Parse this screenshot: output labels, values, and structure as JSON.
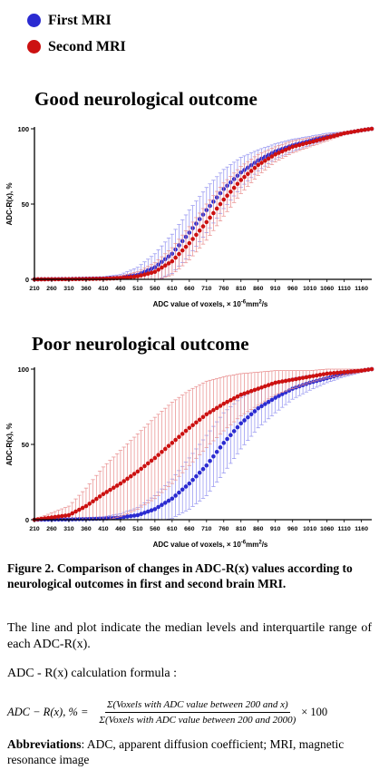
{
  "legend": [
    {
      "label": "First MRI",
      "color": "#2b2bd1"
    },
    {
      "label": "Second MRI",
      "color": "#cc1111"
    }
  ],
  "colors": {
    "first_line": "#2b2bd1",
    "first_error": "#8f8ff0",
    "second_line": "#cc1111",
    "second_error": "#e88a8a"
  },
  "chart_data": [
    {
      "type": "line",
      "title": "Good neurological outcome",
      "ylabel": "ADC-R(x), %",
      "xlabel": "ADC value of voxels, × 10",
      "xlabel_exp": "-6",
      "xlabel_unit": "mm",
      "xlabel_unit_exp": "2",
      "xlabel_tail": "/s",
      "xlim": [
        210,
        1190
      ],
      "ylim": [
        0,
        100
      ],
      "x_ticks": [
        "210",
        "260",
        "310",
        "360",
        "410",
        "460",
        "510",
        "560",
        "610",
        "660",
        "710",
        "760",
        "810",
        "860",
        "910",
        "960",
        "1010",
        "1060",
        "1110",
        "1160"
      ],
      "y_ticks": [
        "0",
        "50",
        "100"
      ],
      "series": [
        {
          "name": "First MRI",
          "x": [
            210,
            310,
            410,
            460,
            510,
            560,
            610,
            660,
            710,
            760,
            810,
            860,
            910,
            960,
            1010,
            1060,
            1110,
            1160,
            1190
          ],
          "y": [
            0,
            0.2,
            0.6,
            1.2,
            3,
            8,
            17,
            31,
            46,
            60,
            71,
            79,
            85,
            89,
            92,
            95,
            97,
            99,
            100
          ],
          "iqr": [
            0,
            0.5,
            1,
            2,
            5,
            9,
            13,
            15,
            15,
            13,
            10,
            7,
            5,
            4,
            3,
            2,
            1,
            0.5,
            0
          ]
        },
        {
          "name": "Second MRI",
          "x": [
            210,
            310,
            410,
            460,
            510,
            560,
            610,
            660,
            710,
            760,
            810,
            860,
            910,
            960,
            1010,
            1060,
            1110,
            1160,
            1190
          ],
          "y": [
            0,
            0.1,
            0.4,
            0.8,
            2,
            5,
            12,
            24,
            38,
            53,
            66,
            76,
            83,
            88,
            91,
            94,
            97,
            99,
            100
          ],
          "iqr": [
            0,
            0.3,
            0.8,
            1.5,
            3,
            6,
            9,
            11,
            12,
            11,
            9,
            7,
            5,
            4,
            3,
            2,
            1,
            0.5,
            0
          ]
        }
      ]
    },
    {
      "type": "line",
      "title": "Poor neurological outcome",
      "ylabel": "ADC-R(x), %",
      "xlabel": "ADC value of voxels, × 10",
      "xlabel_exp": "-6",
      "xlabel_unit": "mm",
      "xlabel_unit_exp": "2",
      "xlabel_tail": "/s",
      "xlim": [
        210,
        1190
      ],
      "ylim": [
        0,
        100
      ],
      "x_ticks": [
        "210",
        "260",
        "310",
        "360",
        "410",
        "460",
        "510",
        "560",
        "610",
        "660",
        "710",
        "760",
        "810",
        "860",
        "910",
        "960",
        "1010",
        "1060",
        "1110",
        "1160"
      ],
      "y_ticks": [
        "0",
        "50",
        "100"
      ],
      "series": [
        {
          "name": "First MRI",
          "x": [
            210,
            310,
            410,
            460,
            510,
            560,
            610,
            660,
            710,
            760,
            810,
            860,
            910,
            960,
            1010,
            1060,
            1110,
            1160,
            1190
          ],
          "y": [
            0,
            0.2,
            0.7,
            1.5,
            3,
            7,
            14,
            24,
            36,
            51,
            64,
            74,
            81,
            87,
            91,
            94,
            97,
            99,
            100
          ],
          "iqr": [
            0,
            0.4,
            1.2,
            2.5,
            5,
            9,
            13,
            17,
            20,
            20,
            17,
            13,
            10,
            7,
            5,
            3,
            2,
            1,
            0
          ]
        },
        {
          "name": "Second MRI",
          "x": [
            210,
            310,
            360,
            410,
            460,
            510,
            560,
            610,
            660,
            710,
            760,
            810,
            860,
            910,
            960,
            1010,
            1060,
            1110,
            1160,
            1190
          ],
          "y": [
            0,
            3,
            9,
            17,
            24,
            32,
            41,
            51,
            61,
            70,
            77,
            83,
            87,
            91,
            93,
            95,
            97,
            98,
            99,
            100
          ],
          "iqr": [
            0,
            6,
            12,
            18,
            22,
            25,
            27,
            27,
            25,
            22,
            18,
            14,
            11,
            8,
            6,
            4,
            3,
            2,
            1,
            0
          ]
        }
      ]
    }
  ],
  "caption": "Figure 2. Comparison of changes in ADC-R(x) values according to neurological outcomes in first and second brain MRI.",
  "description": "The line and plot indicate the median levels and interquartile range of each ADC-R(x).",
  "formula_intro": "ADC - R(x) calculation formula :",
  "formula": {
    "lhs": "ADC − R(x), % =",
    "numerator": "Σ(Voxels with ADC value between 200 and x)",
    "denominator": "Σ(Voxels with ADC value between 200 and 2000)",
    "multiplier": "× 100"
  },
  "abbreviations_label": "Abbreviations",
  "abbreviations_text": ": ADC, apparent diffusion coefficient; MRI, magnetic resonance image"
}
